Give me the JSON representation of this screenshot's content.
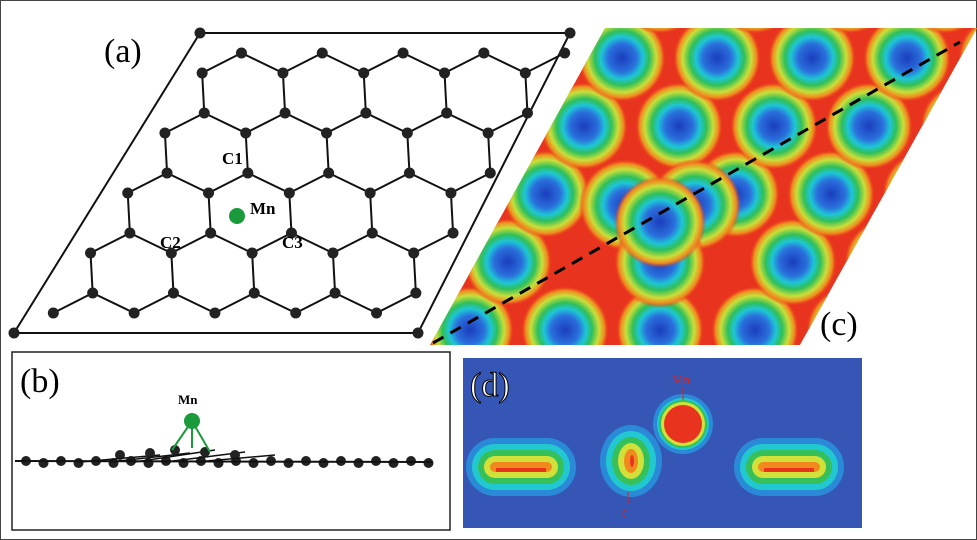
{
  "panels": {
    "a": {
      "label": "(a)",
      "atoms": [
        "C1",
        "C2",
        "C3",
        "Mn"
      ]
    },
    "b": {
      "label": "(b)",
      "atom": "Mn"
    },
    "c": {
      "label": "(c)"
    },
    "d": {
      "label": "(d)",
      "atoms": [
        "Mn",
        "C"
      ]
    }
  }
}
